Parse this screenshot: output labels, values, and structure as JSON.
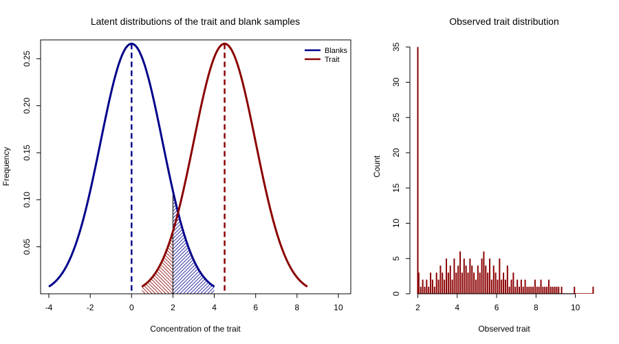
{
  "chart_data": [
    {
      "type": "line",
      "title": "Latent distributions of the trait and blank samples",
      "xlabel": "Concentration of the trait",
      "ylabel": "Frequency",
      "xlim": [
        -4.4,
        10.6
      ],
      "ylim": [
        0.0,
        0.27
      ],
      "x_ticks": [
        -4,
        -2,
        0,
        2,
        4,
        6,
        8,
        10
      ],
      "x_tick_labels": [
        "-4",
        "-2",
        "0",
        "2",
        "4",
        "6",
        "8",
        "10"
      ],
      "y_ticks": [
        0.05,
        0.1,
        0.15,
        0.2,
        0.25
      ],
      "y_tick_labels": [
        "0.05",
        "0.10",
        "0.15",
        "0.20",
        "0.25"
      ],
      "series": [
        {
          "name": "Blanks",
          "color": "#00008B",
          "distribution": "normal",
          "mean": 0,
          "sd": 1.5,
          "x_range": [
            -4,
            4
          ],
          "mean_line": 0,
          "shaded_from": 2,
          "shading": "hatched"
        },
        {
          "name": "Trait",
          "color": "#8B0000",
          "distribution": "normal",
          "mean": 4.5,
          "sd": 1.5,
          "x_range": [
            0.5,
            8.5
          ],
          "mean_line": 4.5,
          "shaded_to": 2,
          "shading": "hatched"
        }
      ],
      "threshold_line": 2,
      "legend": {
        "position": "top-right",
        "entries": [
          "Blanks",
          "Trait"
        ]
      },
      "grid": false
    },
    {
      "type": "bar",
      "title": "Observed trait distribution",
      "xlabel": "Observed trait",
      "ylabel": "Count",
      "xlim": [
        1.6,
        11.2
      ],
      "ylim": [
        0,
        36
      ],
      "x_ticks": [
        2,
        4,
        6,
        8,
        10
      ],
      "x_tick_labels": [
        "2",
        "4",
        "6",
        "8",
        "10"
      ],
      "y_ticks": [
        0,
        5,
        10,
        15,
        20,
        25,
        30,
        35
      ],
      "y_tick_labels": [
        "0",
        "5",
        "10",
        "15",
        "20",
        "25",
        "30",
        "35"
      ],
      "color": "#8B0000",
      "x": [
        2.0,
        2.05,
        2.15,
        2.25,
        2.35,
        2.45,
        2.55,
        2.65,
        2.75,
        2.85,
        2.95,
        3.05,
        3.15,
        3.25,
        3.35,
        3.45,
        3.55,
        3.65,
        3.75,
        3.85,
        3.95,
        4.05,
        4.15,
        4.25,
        4.35,
        4.45,
        4.55,
        4.65,
        4.75,
        4.85,
        4.95,
        5.05,
        5.15,
        5.25,
        5.35,
        5.45,
        5.55,
        5.65,
        5.75,
        5.85,
        5.95,
        6.05,
        6.15,
        6.25,
        6.35,
        6.45,
        6.55,
        6.65,
        6.75,
        6.85,
        6.95,
        7.05,
        7.15,
        7.25,
        7.35,
        7.45,
        7.55,
        7.65,
        7.75,
        7.85,
        7.95,
        8.05,
        8.15,
        8.25,
        8.35,
        8.45,
        8.55,
        8.65,
        8.75,
        8.85,
        8.95,
        9.05,
        9.15,
        9.3,
        9.95,
        10.9
      ],
      "values": [
        35,
        3,
        1,
        2,
        1,
        2,
        1,
        3,
        2,
        1,
        3,
        2,
        4,
        3,
        2,
        5,
        3,
        4,
        2,
        5,
        3,
        4,
        6,
        3,
        5,
        4,
        3,
        5,
        4,
        3,
        2,
        4,
        3,
        5,
        6,
        4,
        3,
        5,
        2,
        4,
        3,
        2,
        5,
        2,
        3,
        2,
        4,
        1,
        2,
        3,
        1,
        2,
        1,
        2,
        1,
        2,
        1,
        1,
        1,
        1,
        2,
        1,
        1,
        2,
        1,
        1,
        1,
        2,
        1,
        1,
        1,
        1,
        1,
        1,
        1,
        1
      ],
      "grid": false
    }
  ]
}
